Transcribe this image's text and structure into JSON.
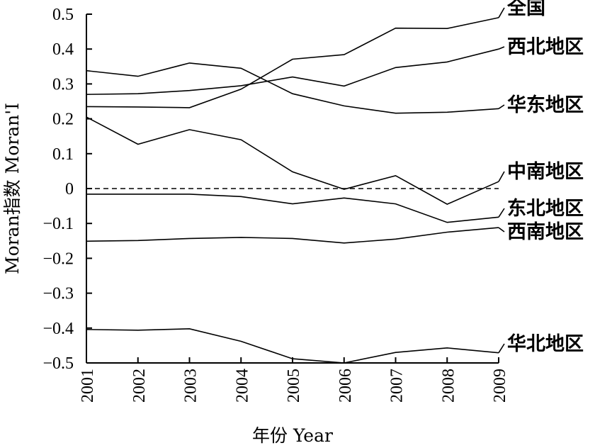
{
  "chart_data": {
    "type": "line",
    "title": "",
    "xlabel": "年份 Year",
    "ylabel": "Moran指数 Moran'I",
    "ylim": [
      -0.5,
      0.5
    ],
    "x": [
      2001,
      2002,
      2003,
      2004,
      2005,
      2006,
      2007,
      2008,
      2009
    ],
    "x_tick_labels": [
      "2001",
      "2002",
      "2003",
      "2004",
      "2005",
      "2006",
      "2007",
      "2008",
      "2009"
    ],
    "y_ticks": [
      0.5,
      0.4,
      0.3,
      0.2,
      0.1,
      0,
      -0.1,
      -0.2,
      -0.3,
      -0.4,
      -0.5
    ],
    "y_tick_labels": [
      "0.5",
      "0.4",
      "0.3",
      "0.2",
      "0.1",
      "0",
      "−0.1",
      "−0.2",
      "−0.3",
      "−0.4",
      "−0.5"
    ],
    "reference_line": {
      "y": 0,
      "style": "dashed"
    },
    "grid": false,
    "legend": "none",
    "series": [
      {
        "name": "全国",
        "values": [
          0.235,
          0.234,
          0.232,
          0.285,
          0.371,
          0.384,
          0.46,
          0.459,
          0.49
        ]
      },
      {
        "name": "西北地区",
        "values": [
          0.27,
          0.272,
          0.281,
          0.295,
          0.32,
          0.294,
          0.347,
          0.363,
          0.4
        ]
      },
      {
        "name": "华东地区",
        "values": [
          0.338,
          0.322,
          0.36,
          0.345,
          0.272,
          0.237,
          0.216,
          0.219,
          0.229
        ]
      },
      {
        "name": "中南地区",
        "values": [
          0.205,
          0.127,
          0.169,
          0.14,
          0.048,
          -0.002,
          0.037,
          -0.045,
          0.02
        ]
      },
      {
        "name": "东北地区",
        "values": [
          -0.016,
          -0.016,
          -0.016,
          -0.023,
          -0.044,
          -0.027,
          -0.044,
          -0.097,
          -0.082
        ]
      },
      {
        "name": "西南地区",
        "values": [
          -0.151,
          -0.149,
          -0.143,
          -0.14,
          -0.143,
          -0.156,
          -0.145,
          -0.125,
          -0.112
        ]
      },
      {
        "name": "华北地区",
        "values": [
          -0.404,
          -0.406,
          -0.402,
          -0.438,
          -0.488,
          -0.5,
          -0.47,
          -0.457,
          -0.471
        ]
      }
    ]
  }
}
